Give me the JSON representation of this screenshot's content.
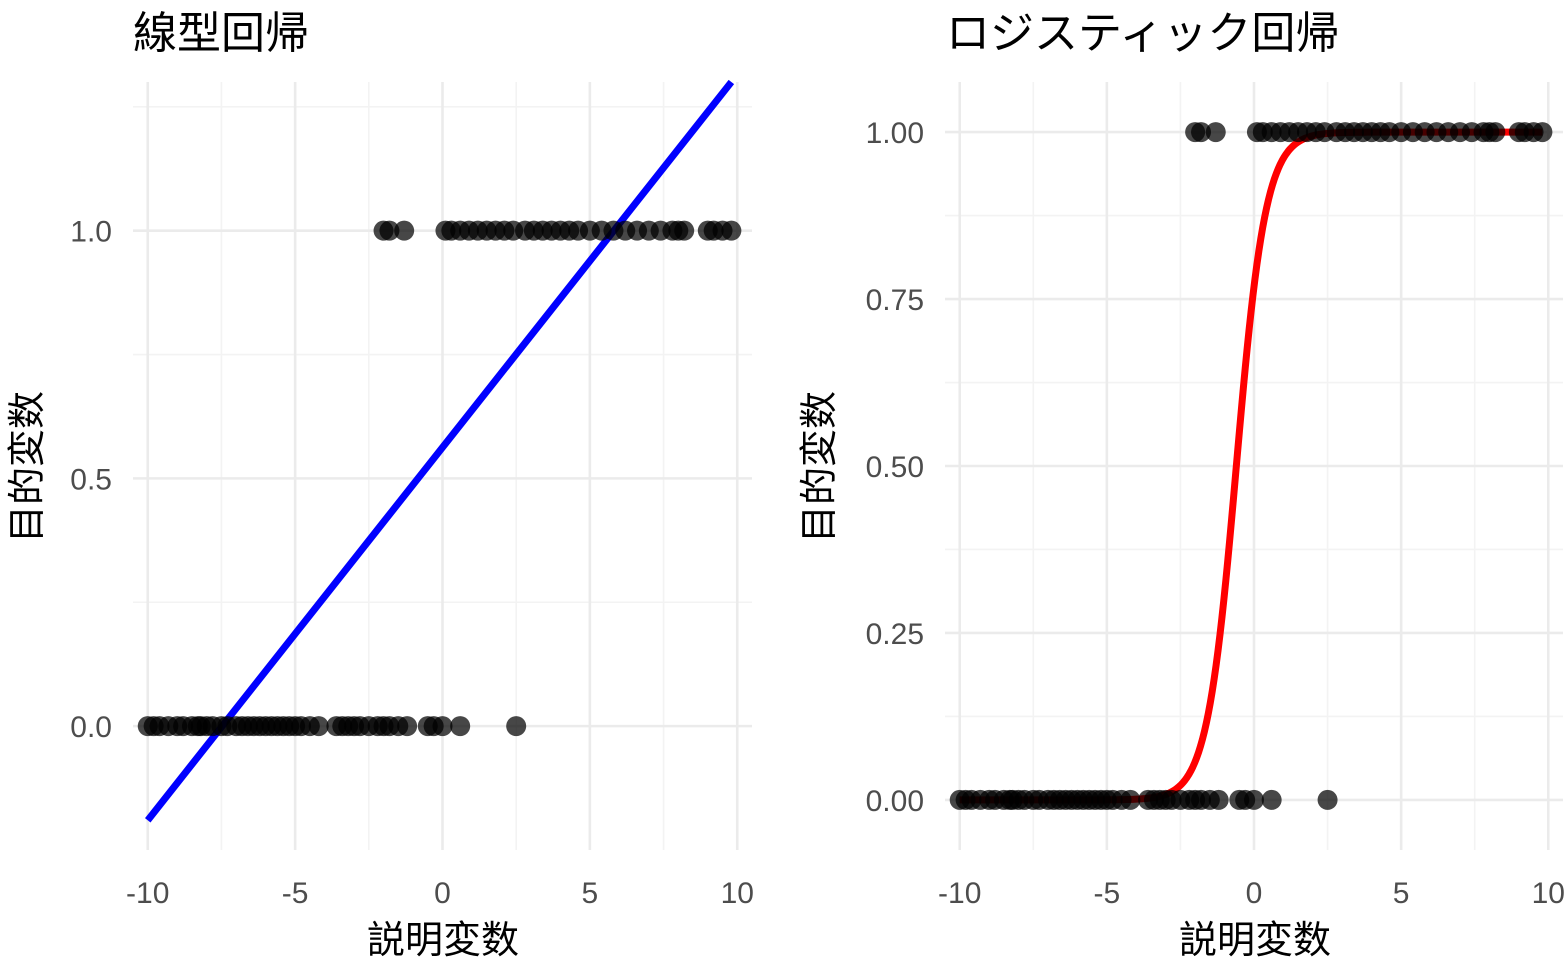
{
  "colors": {
    "linear_fit": "#0000ff",
    "logistic_fit": "#ff0000",
    "points": "#000000"
  },
  "chart_data": [
    {
      "type": "scatter",
      "title": "線型回帰",
      "xlabel": "説明変数",
      "ylabel": "目的変数",
      "xlim": [
        -10.5,
        10.5
      ],
      "ylim": [
        -0.25,
        1.3
      ],
      "x_ticks": [
        -10,
        -5,
        0,
        5,
        10
      ],
      "x_tick_labels": [
        "-10",
        "-5",
        "0",
        "5",
        "10"
      ],
      "y_ticks": [
        0.0,
        0.5,
        1.0
      ],
      "y_tick_labels": [
        "0.0",
        "0.5",
        "1.0"
      ],
      "points_y0_x": [
        -10,
        -9.8,
        -9.6,
        -9.3,
        -9,
        -8.8,
        -8.5,
        -8.3,
        -8.2,
        -8,
        -7.8,
        -7.5,
        -7.3,
        -7,
        -6.8,
        -6.6,
        -6.4,
        -6.2,
        -6,
        -5.8,
        -5.6,
        -5.4,
        -5.2,
        -5,
        -4.8,
        -4.5,
        -4.2,
        -3.6,
        -3.4,
        -3.2,
        -3,
        -2.8,
        -2.5,
        -2.2,
        -2,
        -1.8,
        -1.5,
        -1.2,
        -0.5,
        -0.3,
        0,
        0.6,
        2.5
      ],
      "points_y1_x": [
        -2,
        -1.8,
        -1.3,
        0.1,
        0.3,
        0.6,
        0.9,
        1.2,
        1.5,
        1.8,
        2.1,
        2.4,
        2.8,
        3.1,
        3.4,
        3.7,
        4,
        4.3,
        4.6,
        5,
        5.4,
        5.8,
        6.2,
        6.6,
        7,
        7.4,
        7.8,
        8,
        8.2,
        9,
        9.2,
        9.5,
        9.8
      ],
      "fit_line": {
        "name": "linear fit",
        "x": [
          -10,
          9.8
        ],
        "y": [
          -0.19,
          1.3
        ]
      }
    },
    {
      "type": "scatter",
      "title": "ロジスティック回帰",
      "xlabel": "説明変数",
      "ylabel": "目的変数",
      "xlim": [
        -10.5,
        10.5
      ],
      "ylim": [
        -0.075,
        1.075
      ],
      "x_ticks": [
        -10,
        -5,
        0,
        5,
        10
      ],
      "x_tick_labels": [
        "-10",
        "-5",
        "0",
        "5",
        "10"
      ],
      "y_ticks": [
        0.0,
        0.25,
        0.5,
        0.75,
        1.0
      ],
      "y_tick_labels": [
        "0.00",
        "0.25",
        "0.50",
        "0.75",
        "1.00"
      ],
      "points_y0_x": [
        -10,
        -9.8,
        -9.6,
        -9.3,
        -9,
        -8.8,
        -8.5,
        -8.3,
        -8.2,
        -8,
        -7.8,
        -7.5,
        -7.3,
        -7,
        -6.8,
        -6.6,
        -6.4,
        -6.2,
        -6,
        -5.8,
        -5.6,
        -5.4,
        -5.2,
        -5,
        -4.8,
        -4.5,
        -4.2,
        -3.6,
        -3.4,
        -3.2,
        -3,
        -2.8,
        -2.5,
        -2.2,
        -2,
        -1.8,
        -1.5,
        -1.2,
        -0.5,
        -0.3,
        0,
        0.6,
        2.5
      ],
      "points_y1_x": [
        -2,
        -1.8,
        -1.3,
        0.1,
        0.3,
        0.6,
        0.9,
        1.2,
        1.5,
        1.8,
        2.1,
        2.4,
        2.8,
        3.1,
        3.4,
        3.7,
        4,
        4.3,
        4.6,
        5,
        5.4,
        5.8,
        6.2,
        6.6,
        7,
        7.4,
        7.8,
        8,
        8.2,
        9,
        9.2,
        9.5,
        9.8
      ],
      "fit_curve": {
        "name": "logistic fit",
        "x_range": [
          -10,
          9.8
        ],
        "midpoint": -0.6,
        "slope": 2.0
      }
    }
  ]
}
